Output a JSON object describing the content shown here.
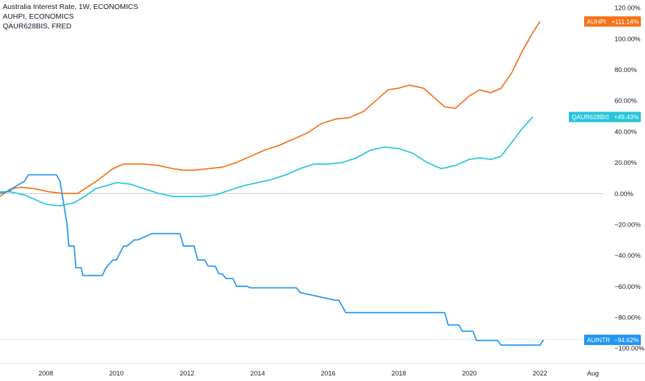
{
  "legend": [
    {
      "label": "Australia Interest Rate, 1W, ECONOMICS"
    },
    {
      "label": "AUHPI, ECONOMICS"
    },
    {
      "label": "QAUR628BIS, FRED"
    }
  ],
  "chart_data": {
    "type": "line",
    "ylabel": "",
    "xlabel": "",
    "ylim": [
      -110,
      125
    ],
    "xlim": [
      2006.7,
      2023.8
    ],
    "y_ticks": [
      "120.00%",
      "100.00%",
      "80.00%",
      "60.00%",
      "40.00%",
      "20.00%",
      "0.00%",
      "−20.00%",
      "−40.00%",
      "−60.00%",
      "−80.00%",
      "−100.00%"
    ],
    "y_tick_values": [
      120,
      100,
      80,
      60,
      40,
      20,
      0,
      -20,
      -40,
      -60,
      -80,
      -100
    ],
    "x_ticks": [
      {
        "label": "2008",
        "x": 2008
      },
      {
        "label": "2010",
        "x": 2010
      },
      {
        "label": "2012",
        "x": 2012
      },
      {
        "label": "2014",
        "x": 2014
      },
      {
        "label": "2016",
        "x": 2016
      },
      {
        "label": "2018",
        "x": 2018
      },
      {
        "label": "2020",
        "x": 2020
      },
      {
        "label": "2022",
        "x": 2022
      },
      {
        "label": "Aug",
        "x": 2023.5
      }
    ],
    "zero_line": 0,
    "series": [
      {
        "name": "AUHPI",
        "color": "#f57317",
        "badge": "+111.14%",
        "badge_value": 111.14,
        "x": [
          2006.7,
          2007.0,
          2007.3,
          2007.7,
          2008.1,
          2008.5,
          2008.9,
          2009.1,
          2009.5,
          2009.9,
          2010.2,
          2010.5,
          2010.8,
          2011.2,
          2011.6,
          2011.9,
          2012.2,
          2012.6,
          2013.0,
          2013.4,
          2013.8,
          2014.2,
          2014.6,
          2015.0,
          2015.4,
          2015.8,
          2016.2,
          2016.6,
          2017.0,
          2017.4,
          2017.7,
          2018.0,
          2018.3,
          2018.7,
          2019.0,
          2019.3,
          2019.6,
          2020.0,
          2020.3,
          2020.6,
          2020.9,
          2021.2,
          2021.5,
          2021.8,
          2022.0
        ],
        "y": [
          -2,
          3,
          4,
          3,
          1,
          0,
          0,
          3,
          9,
          16,
          19,
          19,
          19,
          18,
          16,
          15,
          15,
          16,
          17,
          20,
          24,
          28,
          31,
          35,
          39,
          45,
          48,
          49,
          53,
          61,
          67,
          68,
          70,
          68,
          62,
          56,
          55,
          63,
          67,
          65,
          68,
          78,
          92,
          104,
          111.14
        ]
      },
      {
        "name": "QAUR628BIS",
        "color": "#26c6da",
        "badge": "+49.43%",
        "badge_value": 49.43,
        "x": [
          2006.7,
          2007.0,
          2007.4,
          2007.7,
          2008.0,
          2008.4,
          2008.8,
          2009.1,
          2009.4,
          2009.7,
          2010.0,
          2010.4,
          2010.8,
          2011.2,
          2011.6,
          2012.0,
          2012.4,
          2012.8,
          2013.2,
          2013.6,
          2014.0,
          2014.4,
          2014.8,
          2015.2,
          2015.6,
          2016.0,
          2016.4,
          2016.8,
          2017.2,
          2017.6,
          2018.0,
          2018.4,
          2018.8,
          2019.2,
          2019.6,
          2020.0,
          2020.3,
          2020.6,
          2020.9,
          2021.2,
          2021.5,
          2021.8
        ],
        "y": [
          1,
          1,
          -1,
          -4,
          -7,
          -8,
          -6,
          -2,
          3,
          5,
          7,
          6,
          3,
          0,
          -2,
          -2,
          -2,
          -1,
          2,
          5,
          7,
          9,
          12,
          16,
          19,
          19,
          20,
          23,
          28,
          30,
          29,
          26,
          20,
          16,
          18,
          22,
          23,
          22,
          24,
          33,
          42,
          49.43
        ]
      },
      {
        "name": "AUINTR",
        "color": "#2196f3",
        "badge": "−94.62%",
        "badge_value": -94.62,
        "x": [
          2006.7,
          2007.0,
          2007.1,
          2007.4,
          2007.5,
          2008.3,
          2008.4,
          2008.6,
          2008.65,
          2008.8,
          2008.85,
          2009.0,
          2009.05,
          2009.2,
          2009.25,
          2009.6,
          2009.7,
          2009.9,
          2010.0,
          2010.2,
          2010.3,
          2010.5,
          2010.6,
          2011.0,
          2011.1,
          2011.8,
          2011.9,
          2012.2,
          2012.3,
          2012.5,
          2012.6,
          2012.8,
          2012.9,
          2013.0,
          2013.1,
          2013.3,
          2013.4,
          2013.7,
          2013.8,
          2015.1,
          2015.2,
          2016.2,
          2016.3,
          2016.4,
          2016.5,
          2019.3,
          2019.4,
          2019.7,
          2019.8,
          2020.1,
          2020.2,
          2020.8,
          2020.9,
          2022.0,
          2022.1
        ],
        "y": [
          0,
          2,
          4,
          8,
          12,
          12,
          8,
          -20,
          -34,
          -34,
          -48,
          -48,
          -53,
          -53,
          -53,
          -53,
          -48,
          -43,
          -43,
          -34,
          -34,
          -30,
          -30,
          -26,
          -26,
          -26,
          -34,
          -34,
          -43,
          -43,
          -47,
          -47,
          -52,
          -52,
          -55,
          -55,
          -60,
          -60,
          -61,
          -61,
          -64,
          -69,
          -69,
          -73,
          -77,
          -77,
          -85,
          -85,
          -89,
          -89,
          -95,
          -95,
          -98,
          -98,
          -94.62
        ]
      }
    ]
  }
}
